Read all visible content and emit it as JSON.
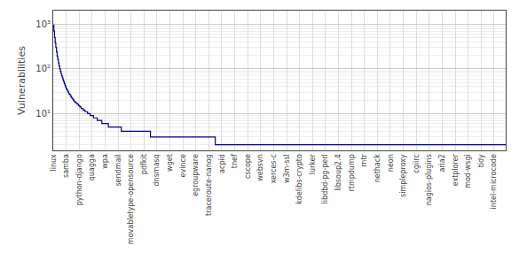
{
  "chart_data": {
    "type": "line",
    "line_style": "step",
    "color": "#00008B",
    "ylabel": "Vulnerabilities",
    "log": "y",
    "grid": true,
    "ylim": [
      1.5,
      2000
    ],
    "yticks": [
      {
        "value": 10,
        "label": "10¹"
      },
      {
        "value": 100,
        "label": "10²"
      },
      {
        "value": 1000,
        "label": "10³"
      }
    ],
    "categories": [
      "linux",
      null,
      null,
      null,
      null,
      null,
      null,
      null,
      null,
      null,
      null,
      null,
      null,
      null,
      null,
      null,
      null,
      null,
      null,
      null,
      "samba",
      null,
      null,
      null,
      null,
      null,
      null,
      null,
      null,
      null,
      null,
      null,
      null,
      null,
      null,
      null,
      null,
      null,
      null,
      null,
      "python-django",
      null,
      null,
      null,
      null,
      null,
      null,
      null,
      null,
      null,
      null,
      null,
      null,
      null,
      null,
      null,
      null,
      null,
      null,
      null,
      "quagga",
      null,
      null,
      null,
      null,
      null,
      null,
      null,
      null,
      null,
      null,
      null,
      null,
      null,
      null,
      null,
      null,
      null,
      null,
      null,
      "wpa",
      null,
      null,
      null,
      null,
      null,
      null,
      null,
      null,
      null,
      null,
      null,
      null,
      null,
      null,
      null,
      null,
      null,
      null,
      null,
      "sendmail",
      null,
      null,
      null,
      null,
      null,
      null,
      null,
      null,
      null,
      null,
      null,
      null,
      null,
      null,
      null,
      null,
      null,
      null,
      null,
      "movabletype-opensource",
      null,
      null,
      null,
      null,
      null,
      null,
      null,
      null,
      null,
      null,
      null,
      null,
      null,
      null,
      null,
      null,
      null,
      null,
      null,
      "pdfkit",
      null,
      null,
      null,
      null,
      null,
      null,
      null,
      null,
      null,
      null,
      null,
      null,
      null,
      null,
      null,
      null,
      null,
      null,
      null,
      "dnsmasq",
      null,
      null,
      null,
      null,
      null,
      null,
      null,
      null,
      null,
      null,
      null,
      null,
      null,
      null,
      null,
      null,
      null,
      null,
      null,
      "wget",
      null,
      null,
      null,
      null,
      null,
      null,
      null,
      null,
      null,
      null,
      null,
      null,
      null,
      null,
      null,
      null,
      null,
      null,
      null,
      "evince",
      null,
      null,
      null,
      null,
      null,
      null,
      null,
      null,
      null,
      null,
      null,
      null,
      null,
      null,
      null,
      null,
      null,
      null,
      null,
      "egroupware",
      null,
      null,
      null,
      null,
      null,
      null,
      null,
      null,
      null,
      null,
      null,
      null,
      null,
      null,
      null,
      null,
      null,
      null,
      null,
      "traceroute-nanog",
      null,
      null,
      null,
      null,
      null,
      null,
      null,
      null,
      null,
      null,
      null,
      null,
      null,
      null,
      null,
      null,
      null,
      null,
      null,
      "acpid",
      null,
      null,
      null,
      null,
      null,
      null,
      null,
      null,
      null,
      null,
      null,
      null,
      null,
      null,
      null,
      null,
      null,
      null,
      null,
      "tnef",
      null,
      null,
      null,
      null,
      null,
      null,
      null,
      null,
      null,
      null,
      null,
      null,
      null,
      null,
      null,
      null,
      null,
      null,
      null,
      "cscope",
      null,
      null,
      null,
      null,
      null,
      null,
      null,
      null,
      null,
      null,
      null,
      null,
      null,
      null,
      null,
      null,
      null,
      null,
      null,
      "websvn",
      null,
      null,
      null,
      null,
      null,
      null,
      null,
      null,
      null,
      null,
      null,
      null,
      null,
      null,
      null,
      null,
      null,
      null,
      null,
      "xerces-c",
      null,
      null,
      null,
      null,
      null,
      null,
      null,
      null,
      null,
      null,
      null,
      null,
      null,
      null,
      null,
      null,
      null,
      null,
      null,
      "w3m-ssl",
      null,
      null,
      null,
      null,
      null,
      null,
      null,
      null,
      null,
      null,
      null,
      null,
      null,
      null,
      null,
      null,
      null,
      null,
      null,
      "kdelibs-crypto",
      null,
      null,
      null,
      null,
      null,
      null,
      null,
      null,
      null,
      null,
      null,
      null,
      null,
      null,
      null,
      null,
      null,
      null,
      null,
      "lurker",
      null,
      null,
      null,
      null,
      null,
      null,
      null,
      null,
      null,
      null,
      null,
      null,
      null,
      null,
      null,
      null,
      null,
      null,
      null,
      "libdbd-pg-perl",
      null,
      null,
      null,
      null,
      null,
      null,
      null,
      null,
      null,
      null,
      null,
      null,
      null,
      null,
      null,
      null,
      null,
      null,
      null,
      "libsoup2.4",
      null,
      null,
      null,
      null,
      null,
      null,
      null,
      null,
      null,
      null,
      null,
      null,
      null,
      null,
      null,
      null,
      null,
      null,
      null,
      "rtmpdump",
      null,
      null,
      null,
      null,
      null,
      null,
      null,
      null,
      null,
      null,
      null,
      null,
      null,
      null,
      null,
      null,
      null,
      null,
      null,
      "mtr",
      null,
      null,
      null,
      null,
      null,
      null,
      null,
      null,
      null,
      null,
      null,
      null,
      null,
      null,
      null,
      null,
      null,
      null,
      null,
      "nethack",
      null,
      null,
      null,
      null,
      null,
      null,
      null,
      null,
      null,
      null,
      null,
      null,
      null,
      null,
      null,
      null,
      null,
      null,
      null,
      "neon",
      null,
      null,
      null,
      null,
      null,
      null,
      null,
      null,
      null,
      null,
      null,
      null,
      null,
      null,
      null,
      null,
      null,
      null,
      null,
      "simpleproxy",
      null,
      null,
      null,
      null,
      null,
      null,
      null,
      null,
      null,
      null,
      null,
      null,
      null,
      null,
      null,
      null,
      null,
      null,
      null,
      "cgiirc",
      null,
      null,
      null,
      null,
      null,
      null,
      null,
      null,
      null,
      null,
      null,
      null,
      null,
      null,
      null,
      null,
      null,
      null,
      null,
      "nagios-plugins",
      null,
      null,
      null,
      null,
      null,
      null,
      null,
      null,
      null,
      null,
      null,
      null,
      null,
      null,
      null,
      null,
      null,
      null,
      null,
      "aria2",
      null,
      null,
      null,
      null,
      null,
      null,
      null,
      null,
      null,
      null,
      null,
      null,
      null,
      null,
      null,
      null,
      null,
      null,
      null,
      "extplorer",
      null,
      null,
      null,
      null,
      null,
      null,
      null,
      null,
      null,
      null,
      null,
      null,
      null,
      null,
      null,
      null,
      null,
      null,
      null,
      "mod-wsgi",
      null,
      null,
      null,
      null,
      null,
      null,
      null,
      null,
      null,
      null,
      null,
      null,
      null,
      null,
      null,
      null,
      null,
      null,
      null,
      "tidy",
      null,
      null,
      null,
      null,
      null,
      null,
      null,
      null,
      null,
      null,
      null,
      null,
      null,
      null,
      null,
      null,
      null,
      null,
      null,
      "intel-microcode",
      null,
      null,
      null,
      null,
      null,
      null,
      null,
      null,
      null,
      null,
      null,
      null,
      null,
      null,
      null,
      null,
      null,
      null
    ],
    "values": [
      950,
      700,
      500,
      380,
      300,
      240,
      190,
      160,
      135,
      115,
      100,
      88,
      78,
      70,
      63,
      57,
      52,
      47,
      43,
      39,
      36,
      34,
      32,
      30,
      28,
      27,
      26,
      24,
      23,
      22,
      21,
      20,
      19,
      18,
      18,
      17,
      17,
      16,
      16,
      15,
      15,
      14,
      14,
      13,
      13,
      13,
      12,
      12,
      12,
      11,
      11,
      11,
      11,
      10,
      10,
      10,
      10,
      9,
      9,
      9,
      9,
      9,
      8,
      8,
      8,
      8,
      8,
      8,
      7,
      7,
      7,
      7,
      7,
      7,
      7,
      6,
      6,
      6,
      6,
      6,
      6,
      6,
      6,
      6,
      6,
      5,
      5,
      5,
      5,
      5,
      5,
      5,
      5,
      5,
      5,
      5,
      5,
      5,
      5,
      5,
      5,
      5,
      5,
      5,
      5,
      4,
      4,
      4,
      4,
      4,
      4,
      4,
      4,
      4,
      4,
      4,
      4,
      4,
      4,
      4,
      4,
      4,
      4,
      4,
      4,
      4,
      4,
      4,
      4,
      4,
      4,
      4,
      4,
      4,
      4,
      4,
      4,
      4,
      4,
      4,
      4,
      4,
      4,
      4,
      4,
      4,
      4,
      4,
      4,
      4,
      3,
      3,
      3,
      3,
      3,
      3,
      3,
      3,
      3,
      3,
      3,
      3,
      3,
      3,
      3,
      3,
      3,
      3,
      3,
      3,
      3,
      3,
      3,
      3,
      3,
      3,
      3,
      3,
      3,
      3,
      3,
      3,
      3,
      3,
      3,
      3,
      3,
      3,
      3,
      3,
      3,
      3,
      3,
      3,
      3,
      3,
      3,
      3,
      3,
      3,
      3,
      3,
      3,
      3,
      3,
      3,
      3,
      3,
      3,
      3,
      3,
      3,
      3,
      3,
      3,
      3,
      3,
      3,
      3,
      3,
      3,
      3,
      3,
      3,
      3,
      3,
      3,
      3,
      3,
      3,
      3,
      3,
      3,
      3,
      3,
      3,
      3,
      3,
      3,
      3,
      3,
      3,
      3,
      3,
      3,
      3,
      3,
      3,
      3,
      3,
      2,
      2,
      2,
      2,
      2,
      2,
      2,
      2,
      2,
      2,
      2,
      2,
      2,
      2,
      2,
      2,
      2,
      2,
      2,
      2,
      2,
      2,
      2,
      2,
      2,
      2,
      2,
      2,
      2,
      2,
      2,
      2,
      2,
      2,
      2,
      2,
      2,
      2,
      2,
      2,
      2,
      2,
      2,
      2,
      2,
      2,
      2,
      2,
      2,
      2,
      2,
      2,
      2,
      2,
      2,
      2,
      2,
      2,
      2,
      2,
      2,
      2,
      2,
      2,
      2,
      2,
      2,
      2,
      2,
      2,
      2,
      2,
      2,
      2,
      2,
      2,
      2,
      2,
      2,
      2,
      2,
      2,
      2,
      2,
      2,
      2,
      2,
      2,
      2,
      2,
      2,
      2,
      2,
      2,
      2,
      2,
      2,
      2,
      2,
      2,
      2,
      2,
      2,
      2,
      2,
      2,
      2,
      2,
      2,
      2,
      2,
      2,
      2,
      2,
      2,
      2,
      2,
      2,
      2,
      2,
      2,
      2,
      2,
      2,
      2,
      2,
      2,
      2,
      2,
      2,
      2,
      2,
      2,
      2,
      2,
      2,
      2,
      2,
      2,
      2,
      2,
      2,
      2,
      2,
      2,
      2,
      2,
      2,
      2,
      2,
      2,
      2,
      2,
      2,
      2,
      2,
      2,
      2,
      2,
      2,
      2,
      2,
      2,
      2,
      2,
      2,
      2,
      2,
      2,
      2,
      2,
      2,
      2,
      2,
      2,
      2,
      2,
      2,
      2,
      2,
      2,
      2,
      2,
      2,
      2,
      2,
      2,
      2,
      2,
      2,
      2,
      2,
      2,
      2,
      2,
      2,
      2,
      2,
      2,
      2,
      2,
      2,
      2,
      2,
      2,
      2,
      2,
      2,
      2,
      2,
      2,
      2,
      2,
      2,
      2,
      2,
      2,
      2,
      2,
      2,
      2,
      2,
      2,
      2,
      2,
      2,
      2,
      2,
      2,
      2,
      2,
      2,
      2,
      2,
      2,
      2,
      2,
      2,
      2,
      2,
      2,
      2,
      2,
      2,
      2,
      2,
      2,
      2,
      2,
      2,
      2,
      2,
      2,
      2,
      2,
      2,
      2,
      2,
      2,
      2,
      2,
      2,
      2,
      2,
      2,
      2,
      2,
      2,
      2,
      2,
      2,
      2,
      2,
      2,
      2,
      2,
      2,
      2,
      2,
      2,
      2,
      2,
      2,
      2,
      2,
      2,
      2,
      2,
      2,
      2,
      2,
      2,
      2,
      2,
      2,
      2,
      2,
      2,
      2,
      2,
      2,
      2,
      2,
      2,
      2,
      2,
      2,
      2,
      2,
      2,
      2,
      2,
      2,
      2,
      2,
      2,
      2,
      2,
      2,
      2,
      2,
      2,
      2,
      2,
      2,
      2,
      2,
      2,
      2,
      2,
      2,
      2,
      2,
      2,
      2,
      2,
      2,
      2,
      2,
      2,
      2,
      2,
      2,
      2,
      2,
      2,
      2,
      2,
      2,
      2,
      2,
      2,
      2,
      2,
      2,
      2,
      2,
      2,
      2,
      2,
      2,
      2,
      2,
      2,
      2,
      2,
      2,
      2,
      2,
      2,
      2,
      2,
      2,
      2,
      2,
      2,
      2,
      2,
      2,
      2,
      2,
      2,
      2,
      2,
      2,
      2,
      2,
      2,
      2,
      2,
      2,
      2,
      2,
      2,
      2,
      2,
      2,
      2,
      2,
      2,
      2,
      2,
      2,
      2,
      2,
      2,
      2,
      2,
      2,
      2,
      2,
      2,
      2,
      2,
      2,
      2,
      2,
      2,
      2,
      2,
      2,
      2,
      2,
      2,
      2,
      2,
      2,
      2,
      2,
      2,
      2,
      2,
      2,
      2,
      2,
      2,
      2,
      2,
      2,
      2,
      2,
      2,
      2,
      2,
      2,
      2,
      2,
      2,
      2
    ]
  }
}
